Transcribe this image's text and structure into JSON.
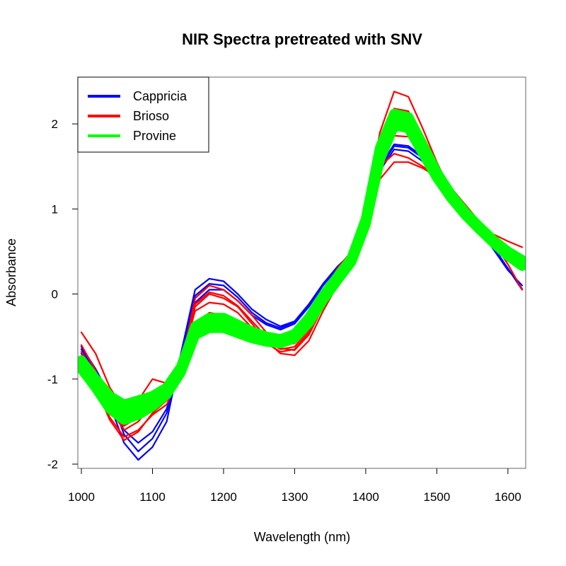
{
  "chart_data": {
    "type": "line",
    "title": "NIR Spectra pretreated with SNV",
    "xlabel": "Wavelength (nm)",
    "ylabel": "Absorbance",
    "xlim": [
      995,
      1625
    ],
    "ylim": [
      -2.05,
      2.55
    ],
    "xticks": [
      1000,
      1100,
      1200,
      1300,
      1400,
      1500,
      1600
    ],
    "yticks": [
      -2,
      -1,
      0,
      1,
      2
    ],
    "legend": {
      "position": "top-left",
      "entries": [
        {
          "label": "Cappricia",
          "color": "#0000ff"
        },
        {
          "label": "Brioso",
          "color": "#ff0000"
        },
        {
          "label": "Provine",
          "color": "#00ff00"
        }
      ]
    },
    "x": [
      1000,
      1020,
      1040,
      1060,
      1080,
      1100,
      1120,
      1140,
      1160,
      1180,
      1200,
      1220,
      1240,
      1260,
      1280,
      1300,
      1320,
      1340,
      1360,
      1380,
      1400,
      1420,
      1440,
      1460,
      1480,
      1500,
      1520,
      1540,
      1560,
      1580,
      1600,
      1620
    ],
    "series": [
      {
        "name": "Cappricia",
        "color": "#0000ff",
        "values": [
          -0.65,
          -0.92,
          -1.3,
          -1.75,
          -1.95,
          -1.8,
          -1.5,
          -0.7,
          0.05,
          0.18,
          0.15,
          0.0,
          -0.18,
          -0.3,
          -0.38,
          -0.32,
          -0.12,
          0.12,
          0.32,
          0.48,
          0.95,
          1.48,
          1.74,
          1.72,
          1.6,
          1.42,
          1.22,
          1.0,
          0.78,
          0.55,
          0.3,
          0.05
        ]
      },
      {
        "name": "Cappricia",
        "color": "#0000ff",
        "values": [
          -0.7,
          -0.95,
          -1.25,
          -1.6,
          -1.75,
          -1.62,
          -1.35,
          -0.75,
          -0.1,
          0.05,
          0.05,
          -0.08,
          -0.25,
          -0.36,
          -0.42,
          -0.35,
          -0.15,
          0.1,
          0.3,
          0.45,
          0.92,
          1.45,
          1.7,
          1.68,
          1.56,
          1.4,
          1.2,
          0.98,
          0.75,
          0.52,
          0.28,
          0.1
        ]
      },
      {
        "name": "Cappricia",
        "color": "#0000ff",
        "values": [
          -0.62,
          -0.88,
          -1.2,
          -1.65,
          -1.85,
          -1.7,
          -1.4,
          -0.72,
          -0.02,
          0.12,
          0.1,
          -0.04,
          -0.22,
          -0.34,
          -0.4,
          -0.33,
          -0.14,
          0.11,
          0.31,
          0.46,
          0.94,
          1.5,
          1.76,
          1.74,
          1.62,
          1.43,
          1.21,
          0.99,
          0.77,
          0.54,
          0.3,
          0.06
        ]
      },
      {
        "name": "Brioso",
        "color": "#ff0000",
        "values": [
          -0.45,
          -0.7,
          -1.1,
          -1.35,
          -1.25,
          -1.0,
          -1.05,
          -0.8,
          -0.15,
          0.0,
          -0.05,
          -0.15,
          -0.35,
          -0.55,
          -0.7,
          -0.72,
          -0.55,
          -0.2,
          0.1,
          0.35,
          0.9,
          1.7,
          2.18,
          2.15,
          1.75,
          1.4,
          1.15,
          0.95,
          0.8,
          0.7,
          0.62,
          0.55
        ]
      },
      {
        "name": "Brioso",
        "color": "#ff0000",
        "values": [
          -0.6,
          -0.9,
          -1.35,
          -1.6,
          -1.5,
          -1.3,
          -1.2,
          -0.85,
          -0.05,
          0.1,
          0.05,
          -0.08,
          -0.25,
          -0.45,
          -0.6,
          -0.58,
          -0.35,
          -0.02,
          0.3,
          0.5,
          1.0,
          1.9,
          2.38,
          2.32,
          1.95,
          1.55,
          1.2,
          0.95,
          0.75,
          0.6,
          0.45,
          0.3
        ]
      },
      {
        "name": "Brioso",
        "color": "#ff0000",
        "values": [
          -0.85,
          -1.1,
          -1.48,
          -1.72,
          -1.62,
          -1.4,
          -1.25,
          -0.95,
          -0.4,
          -0.3,
          -0.32,
          -0.42,
          -0.52,
          -0.6,
          -0.62,
          -0.55,
          -0.35,
          -0.05,
          0.2,
          0.4,
          0.8,
          1.35,
          1.55,
          1.55,
          1.48,
          1.38,
          1.25,
          1.05,
          0.85,
          0.6,
          0.35,
          0.05
        ]
      },
      {
        "name": "Brioso",
        "color": "#ff0000",
        "values": [
          -0.75,
          -1.0,
          -1.4,
          -1.55,
          -1.45,
          -1.3,
          -1.15,
          -0.8,
          -0.2,
          -0.1,
          -0.12,
          -0.22,
          -0.4,
          -0.55,
          -0.65,
          -0.62,
          -0.42,
          -0.1,
          0.2,
          0.42,
          0.88,
          1.55,
          1.86,
          1.85,
          1.7,
          1.45,
          1.2,
          0.98,
          0.8,
          0.65,
          0.5,
          0.4
        ]
      },
      {
        "name": "Brioso",
        "color": "#ff0000",
        "values": [
          -0.9,
          -1.12,
          -1.45,
          -1.68,
          -1.6,
          -1.42,
          -1.3,
          -0.92,
          -0.35,
          -0.22,
          -0.25,
          -0.35,
          -0.48,
          -0.58,
          -0.68,
          -0.65,
          -0.45,
          -0.12,
          0.18,
          0.4,
          0.85,
          1.5,
          1.65,
          1.6,
          1.5,
          1.38,
          1.2,
          1.0,
          0.82,
          0.68,
          0.55,
          0.45
        ]
      },
      {
        "name": "Brioso",
        "color": "#ff0000",
        "values": [
          -0.68,
          -0.95,
          -1.3,
          -1.5,
          -1.35,
          -1.15,
          -1.1,
          -0.78,
          -0.12,
          0.02,
          -0.02,
          -0.14,
          -0.32,
          -0.5,
          -0.64,
          -0.66,
          -0.48,
          -0.15,
          0.16,
          0.38,
          0.92,
          1.68,
          2.08,
          2.06,
          1.8,
          1.46,
          1.18,
          0.96,
          0.78,
          0.62,
          0.48,
          0.36
        ]
      },
      {
        "name": "Provine",
        "color": "#00ff00",
        "values": [
          -0.78,
          -1.0,
          -1.2,
          -1.3,
          -1.25,
          -1.2,
          -1.1,
          -0.9,
          -0.45,
          -0.35,
          -0.35,
          -0.42,
          -0.48,
          -0.52,
          -0.55,
          -0.5,
          -0.32,
          -0.05,
          0.18,
          0.4,
          0.85,
          1.65,
          2.05,
          2.0,
          1.7,
          1.4,
          1.15,
          0.95,
          0.78,
          0.62,
          0.48,
          0.38
        ]
      },
      {
        "name": "Provine",
        "color": "#00ff00",
        "values": [
          -0.82,
          -1.05,
          -1.28,
          -1.38,
          -1.32,
          -1.25,
          -1.12,
          -0.88,
          -0.38,
          -0.28,
          -0.28,
          -0.36,
          -0.44,
          -0.5,
          -0.53,
          -0.47,
          -0.28,
          -0.02,
          0.2,
          0.42,
          0.88,
          1.72,
          2.12,
          2.08,
          1.76,
          1.43,
          1.17,
          0.96,
          0.79,
          0.63,
          0.5,
          0.4
        ]
      },
      {
        "name": "Provine",
        "color": "#00ff00",
        "values": [
          -0.88,
          -1.1,
          -1.35,
          -1.48,
          -1.42,
          -1.32,
          -1.18,
          -0.92,
          -0.48,
          -0.4,
          -0.4,
          -0.46,
          -0.52,
          -0.56,
          -0.58,
          -0.52,
          -0.34,
          -0.07,
          0.16,
          0.38,
          0.82,
          1.58,
          1.98,
          1.95,
          1.66,
          1.37,
          1.13,
          0.93,
          0.76,
          0.6,
          0.45,
          0.33
        ]
      },
      {
        "name": "Provine",
        "color": "#00ff00",
        "values": [
          -0.8,
          -1.02,
          -1.25,
          -1.35,
          -1.3,
          -1.22,
          -1.1,
          -0.86,
          -0.4,
          -0.3,
          -0.3,
          -0.38,
          -0.46,
          -0.51,
          -0.54,
          -0.48,
          -0.3,
          -0.03,
          0.19,
          0.41,
          0.86,
          1.68,
          2.08,
          2.04,
          1.73,
          1.41,
          1.16,
          0.95,
          0.78,
          0.62,
          0.49,
          0.39
        ]
      },
      {
        "name": "Provine",
        "color": "#00ff00",
        "values": [
          -0.85,
          -1.08,
          -1.32,
          -1.42,
          -1.36,
          -1.28,
          -1.15,
          -0.9,
          -0.44,
          -0.34,
          -0.34,
          -0.41,
          -0.48,
          -0.53,
          -0.56,
          -0.5,
          -0.32,
          -0.05,
          0.17,
          0.39,
          0.84,
          1.62,
          2.02,
          1.98,
          1.68,
          1.39,
          1.14,
          0.94,
          0.77,
          0.61,
          0.47,
          0.36
        ]
      }
    ]
  }
}
